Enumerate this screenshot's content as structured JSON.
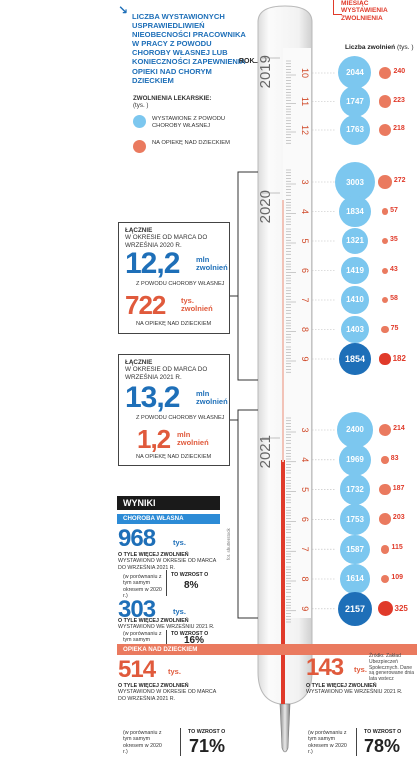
{
  "header": {
    "title": "Liczba wystawionych usprawiedliwień nieobecności pracownika w pracy z powodu choroby własnej lub konieczności zapewnienia opieki nad chorym dzieckiem",
    "month_label": "Miesiąc wystawienia zwolnienia",
    "year_label": "ROK",
    "count_label": "Liczba zwolnień",
    "count_unit": "(tys. )"
  },
  "legend": {
    "title": "Zwolnienia lekarskie:",
    "unit": "(tys. )",
    "items": [
      {
        "label": "Wystawione z powodu choroby własnej",
        "color": "#7cc7ef"
      },
      {
        "label": "Na opiekę nad dzieckiem",
        "color": "#ea7a5f"
      }
    ]
  },
  "box_2020": {
    "header_bold": "Łącznie",
    "header": "w okresie od marca do września 2020 r.",
    "own_value": "12,2",
    "own_unit_1": "mln",
    "own_unit_2": "zwolnień",
    "own_caption": "z powodu choroby własnej",
    "child_value": "722",
    "child_unit_1": "tys.",
    "child_unit_2": "zwolnień",
    "child_caption": "na opiekę nad dzieckiem"
  },
  "box_2021": {
    "header_bold": "Łącznie",
    "header": "w okresie od marca do września 2021 r.",
    "own_value": "13,2",
    "own_unit_1": "mln",
    "own_unit_2": "zwolnień",
    "own_caption": "z powodu choroby własnej",
    "child_value": "1,2",
    "child_unit_1": "mln",
    "child_unit_2": "zwolnień",
    "child_caption": "na opiekę nad dzieckiem"
  },
  "wyniki": {
    "title": "WYNIKI",
    "own_bar": "Choroba własna",
    "child_bar": "Opieka nad dzieckiem",
    "own_1": {
      "value": "968",
      "unit": "tys.",
      "desc_bold": "o tyle więcej zwolnień",
      "desc": "wystawiono w okresie od marca do września 2021 r.",
      "cmp": "(w porównaniu z tym samym okresem w 2020 r.)",
      "growth_label": "TO WZROST O",
      "growth": "8%"
    },
    "own_2": {
      "value": "303",
      "unit": "tys.",
      "desc_bold": "o tyle więcej zwolnień",
      "desc": "wystawiono we wrześniu 2021 r.",
      "cmp": "(w porównaniu z tym samym okresem w 2020 r.)",
      "growth_label": "TO WZROST O",
      "growth": "16%"
    },
    "child_1": {
      "value": "514",
      "unit": "tys.",
      "desc_bold": "o tyle więcej zwolnień",
      "desc": "wystawiono w okresie od marca do września 2021 r.",
      "cmp": "(w porównaniu z tym samym okresem w 2020 r.)",
      "growth_label": "TO WZROST O",
      "growth": "71%"
    },
    "child_2": {
      "value": "143",
      "unit": "tys.",
      "desc_bold": "o tyle więcej zwolnień",
      "desc": "wystawiono we wrześniu 2021 r.",
      "cmp": "(w porównaniu z tym samym okresem w 2020 r.)",
      "growth_label": "TO WZROST O",
      "growth": "78%"
    }
  },
  "source": "Źródło: Zakład Ubezpieczeń Społecznych. Dane są generowane dnia lata wstecz",
  "photo_credit": "fot. shutterstock",
  "colors": {
    "own": "#7cc7ef",
    "own_dark": "#1e6fb8",
    "child": "#ea7a5f",
    "child_dark": "#e03a2a"
  },
  "chart_data": {
    "type": "bar",
    "years": [
      {
        "year": "2019",
        "months": [
          "10",
          "11",
          "12"
        ]
      },
      {
        "year": "2020",
        "months": [
          "3",
          "4",
          "5",
          "6",
          "7",
          "8",
          "9"
        ]
      },
      {
        "year": "2021",
        "months": [
          "3",
          "4",
          "5",
          "6",
          "7",
          "8",
          "9"
        ]
      }
    ],
    "categories": [
      "2019-10",
      "2019-11",
      "2019-12",
      "2020-3",
      "2020-4",
      "2020-5",
      "2020-6",
      "2020-7",
      "2020-8",
      "2020-9",
      "2021-3",
      "2021-4",
      "2021-5",
      "2021-6",
      "2021-7",
      "2021-8",
      "2021-9"
    ],
    "series": [
      {
        "name": "Wystawione z powodu choroby własnej",
        "values": [
          2044,
          1747,
          1763,
          3003,
          1834,
          1321,
          1419,
          1410,
          1403,
          1854,
          2400,
          1969,
          1732,
          1753,
          1587,
          1614,
          2157
        ]
      },
      {
        "name": "Na opiekę nad dzieckiem",
        "values": [
          240,
          223,
          218,
          272,
          57,
          35,
          43,
          58,
          75,
          182,
          214,
          83,
          187,
          203,
          115,
          109,
          325
        ]
      }
    ],
    "highlight_indices": [
      9,
      16
    ],
    "unit": "tys."
  }
}
